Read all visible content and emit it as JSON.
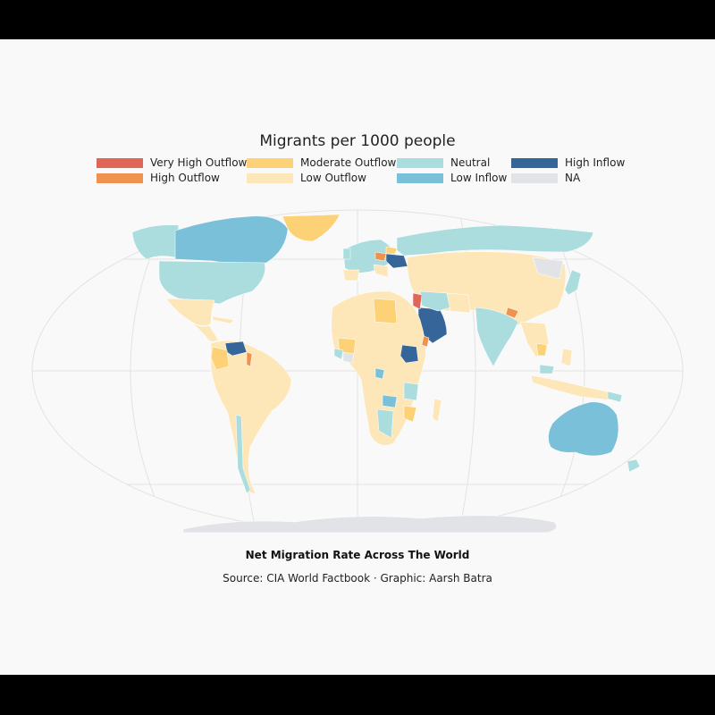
{
  "title": "Migrants per 1000 people",
  "legend": [
    {
      "label": "Very High Outflow",
      "color": "#e0665a"
    },
    {
      "label": "High Outflow",
      "color": "#f0924f"
    },
    {
      "label": "Moderate Outflow",
      "color": "#fdd277"
    },
    {
      "label": "Low Outflow",
      "color": "#fde7b8"
    },
    {
      "label": "Neutral",
      "color": "#abdcde"
    },
    {
      "label": "Low Inflow",
      "color": "#7ac0d8"
    },
    {
      "label": "High Inflow",
      "color": "#366699"
    },
    {
      "label": "NA",
      "color": "#e1e3e6"
    }
  ],
  "caption": {
    "title": "Net Migration Rate Across The World",
    "source": "Source: CIA World Factbook · Graphic: Aarsh Batra"
  },
  "colors": {
    "page_background": "#f9f9f9",
    "outer_background": "#000000",
    "graticule": "#e3e3e3"
  }
}
